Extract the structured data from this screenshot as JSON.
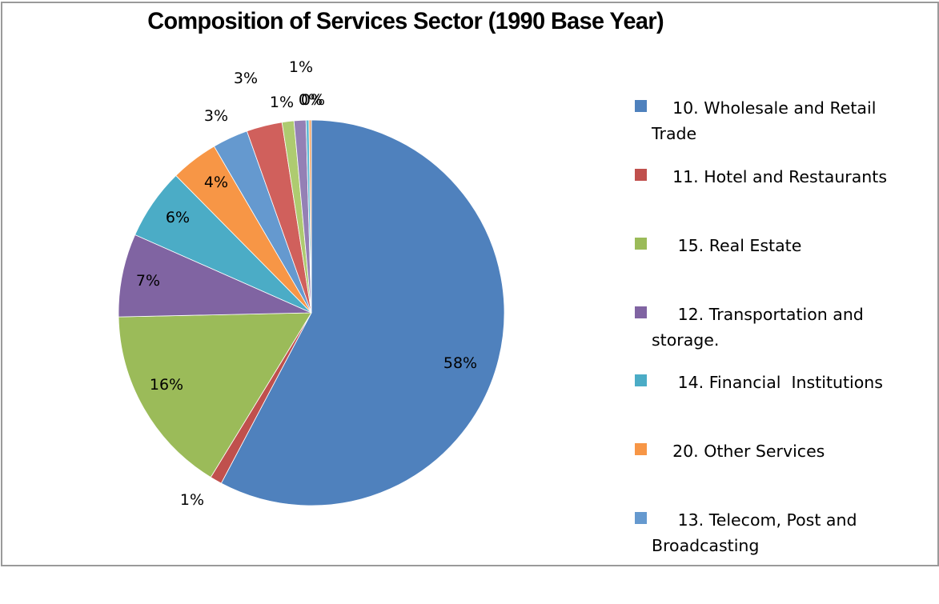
{
  "chart_data": {
    "type": "pie",
    "title": "Composition of Services Sector (1990 Base Year)",
    "start_angle_deg": 0,
    "direction": "clockwise",
    "slices": [
      {
        "label": "10. Wholesale and Retail Trade",
        "value": 58,
        "display": "58%",
        "color": "#4F81BD"
      },
      {
        "label": "11. Hotel and Restaurants",
        "value": 1,
        "display": "1%",
        "color": "#C0504D"
      },
      {
        "label": "15. Real Estate",
        "value": 16,
        "display": "16%",
        "color": "#9BBB59"
      },
      {
        "label": "12. Transportation and storage.",
        "value": 7,
        "display": "7%",
        "color": "#8064A2"
      },
      {
        "label": "14. Financial  Institutions",
        "value": 6,
        "display": "6%",
        "color": "#4BACC6"
      },
      {
        "label": "20. Other Services",
        "value": 4,
        "display": "4%",
        "color": "#F79646"
      },
      {
        "label": "13. Telecom, Post and Broadcasting",
        "value": 3,
        "display": "3%",
        "color": "#6599CF"
      },
      {
        "label": "",
        "value": 3,
        "display": "3%",
        "color": "#D0605C"
      },
      {
        "label": "",
        "value": 1,
        "display": "1%",
        "color": "#AECB70"
      },
      {
        "label": "",
        "value": 1,
        "display": "1%",
        "color": "#9480B5"
      },
      {
        "label": "",
        "value": 0.25,
        "display": "0%",
        "color": "#5FBAD4"
      },
      {
        "label": "",
        "value": 0.2,
        "display": "0%",
        "color": "#F5A86A"
      }
    ],
    "legend": {
      "placement": "right",
      "items": [
        {
          "text": "    10. Wholesale and Retail Trade",
          "color": "#4F81BD"
        },
        {
          "text": "    11. Hotel and Restaurants",
          "color": "#C0504D"
        },
        {
          "text": "     15. Real Estate",
          "color": "#9BBB59"
        },
        {
          "text": "     12. Transportation and storage.",
          "color": "#8064A2"
        },
        {
          "text": "     14. Financial  Institutions",
          "color": "#4BACC6"
        },
        {
          "text": "    20. Other Services",
          "color": "#F79646"
        },
        {
          "text": "     13. Telecom, Post and Broadcasting",
          "color": "#6599CF"
        }
      ]
    }
  }
}
